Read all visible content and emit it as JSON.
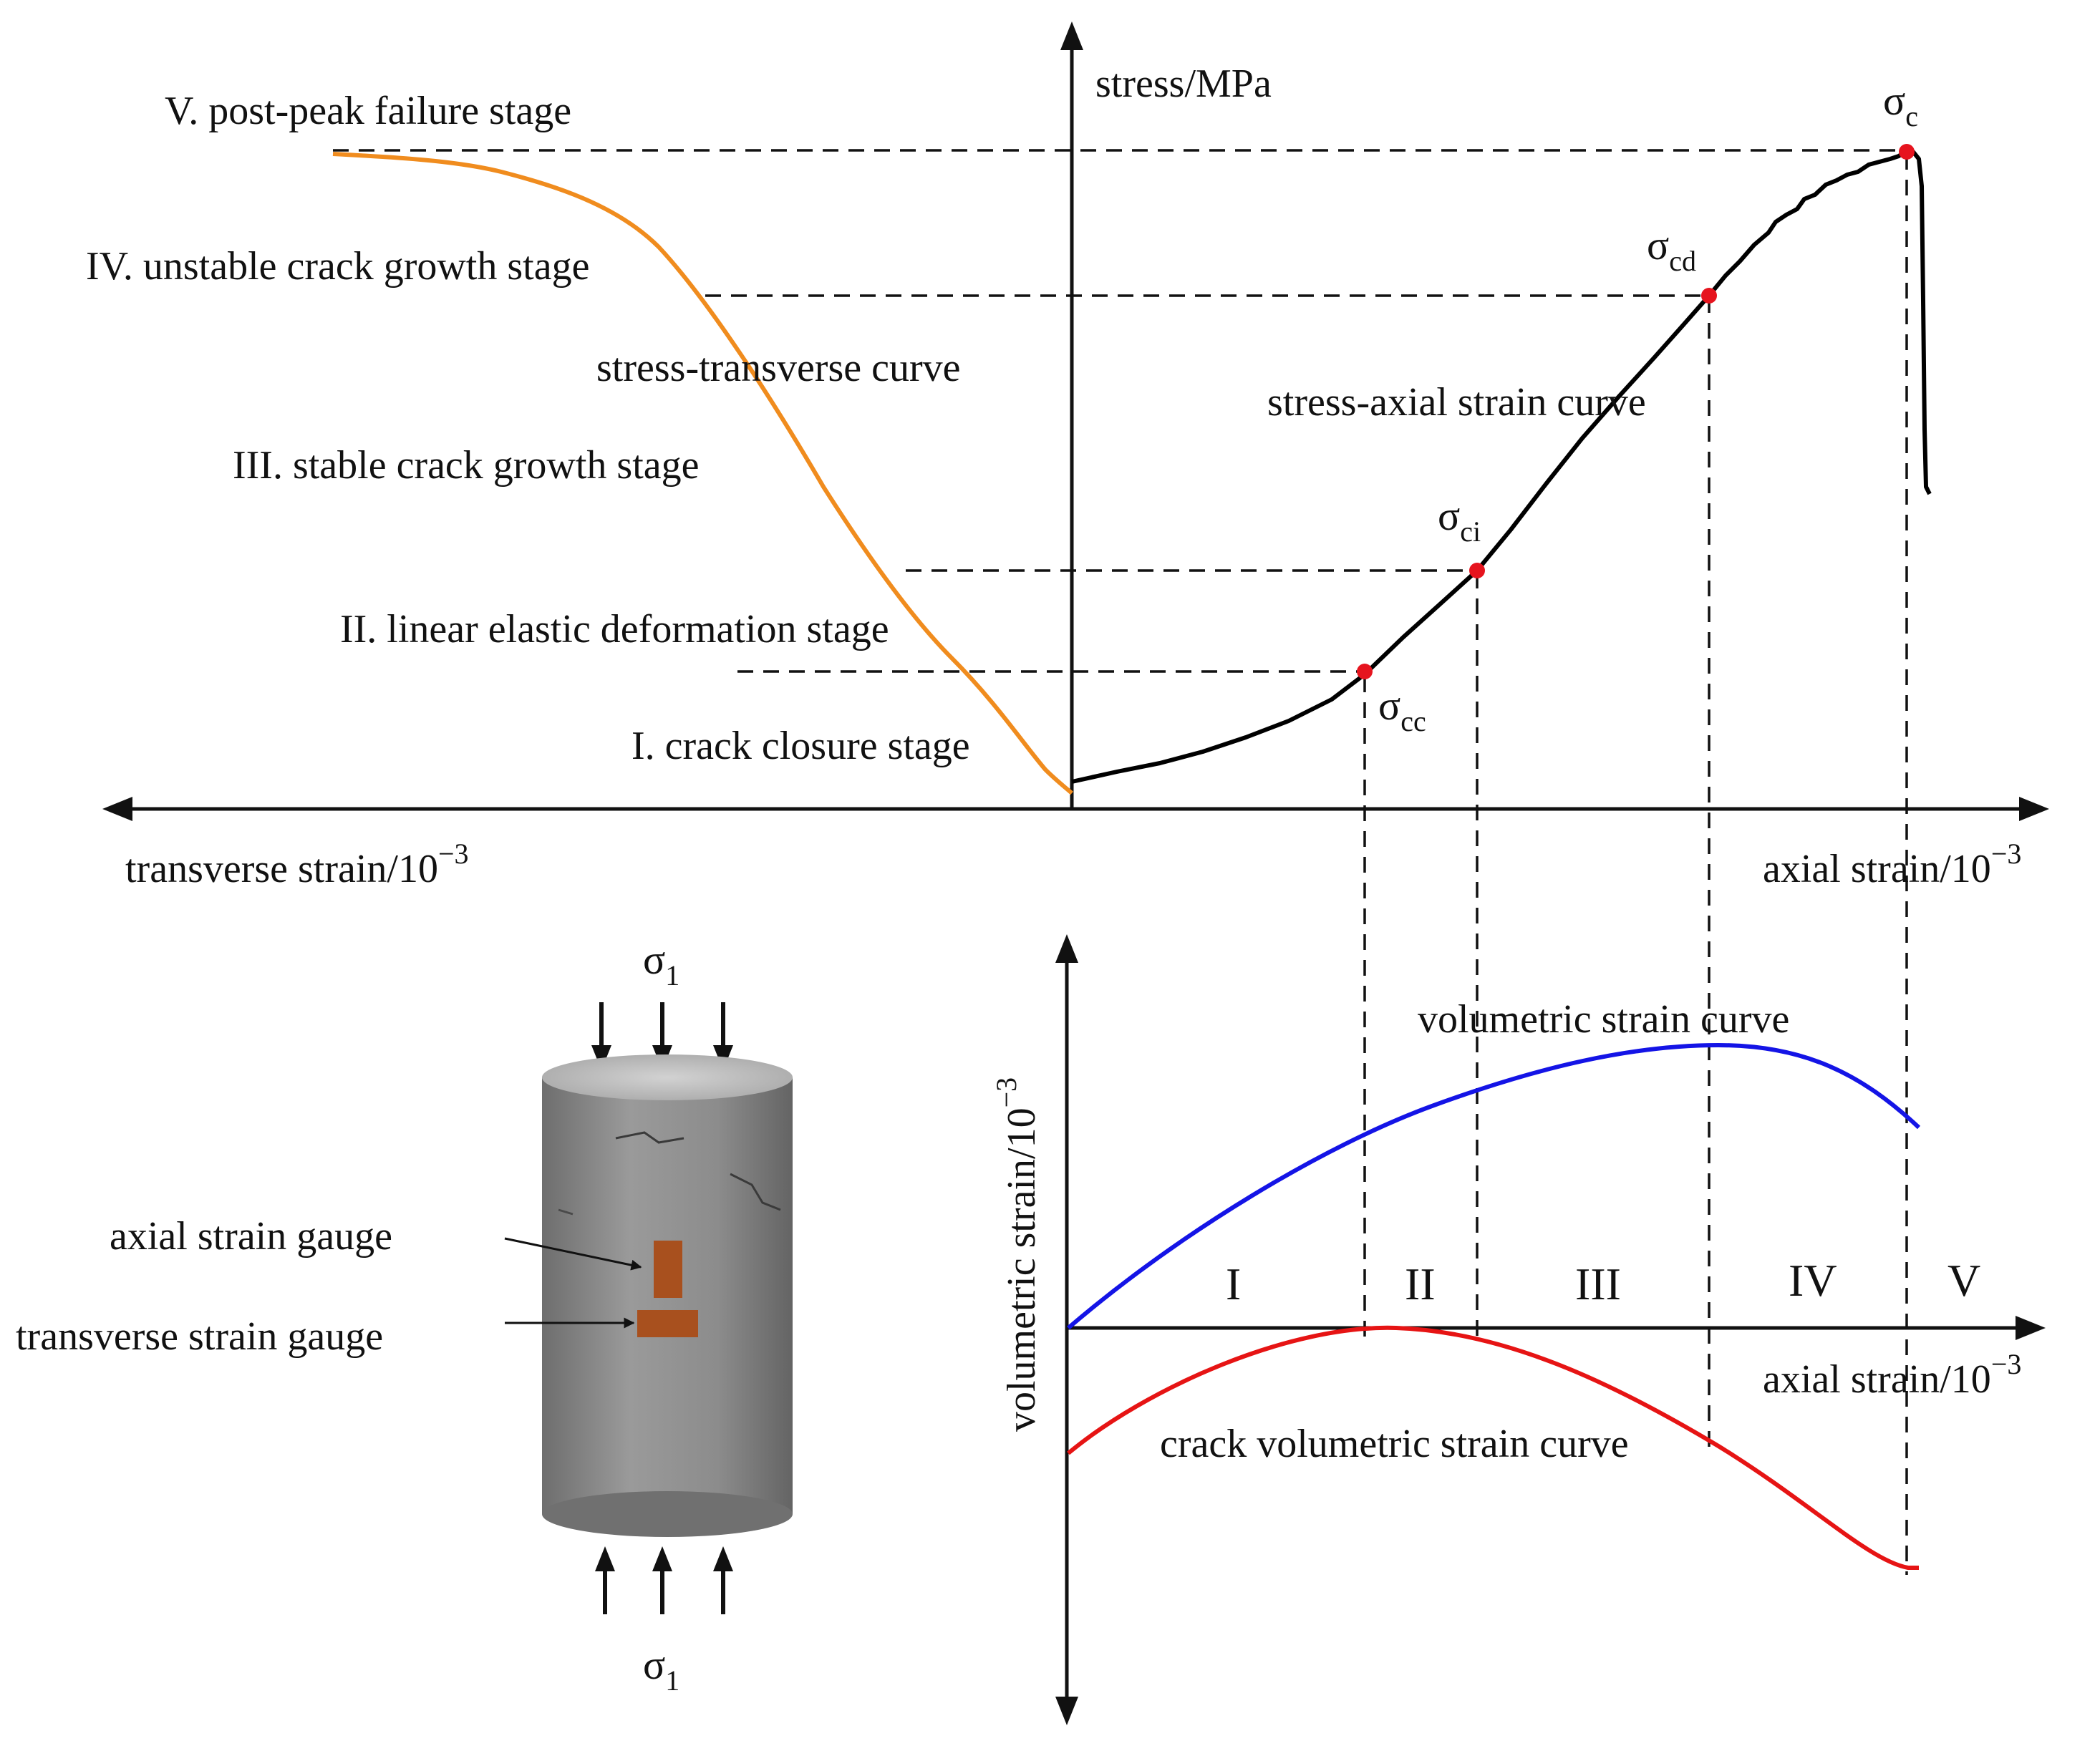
{
  "top_chart": {
    "y_axis_label": "stress/MPa",
    "x_axis_left_label": "transverse strain/10",
    "x_axis_right_label": "axial strain/10",
    "exponent": "−3",
    "stages": [
      "V. post-peak failure stage",
      "IV. unstable crack growth stage",
      "III. stable crack growth stage",
      "II. linear elastic deformation stage",
      "I. crack closure stage"
    ],
    "curve_labels": {
      "transverse": "stress-transverse curve",
      "axial": "stress-axial strain curve"
    },
    "thresholds": [
      {
        "symbol": "σ",
        "sub": "cc"
      },
      {
        "symbol": "σ",
        "sub": "ci"
      },
      {
        "symbol": "σ",
        "sub": "cd"
      },
      {
        "symbol": "σ",
        "sub": "c"
      }
    ]
  },
  "bottom_chart": {
    "y_axis_label": "volumetric strain/10",
    "x_axis_label": "axial strain/10",
    "exponent": "−3",
    "curve_labels": {
      "volumetric": "volumetric strain curve",
      "crack": "crack volumetric strain curve"
    },
    "regions": [
      "I",
      "II",
      "III",
      "IV",
      "V"
    ]
  },
  "specimen": {
    "load_symbol": "σ",
    "load_sub": "1",
    "axial_gauge_label": "axial strain gauge",
    "transverse_gauge_label": "transverse strain gauge"
  },
  "colors": {
    "axial_curve": "#000000",
    "transverse_curve": "#f08c1e",
    "volumetric_curve": "#1414e6",
    "crack_curve": "#e61414",
    "threshold_point": "#e6141e",
    "gauge": "#a8501e",
    "specimen_body": "#8a8a8a"
  }
}
